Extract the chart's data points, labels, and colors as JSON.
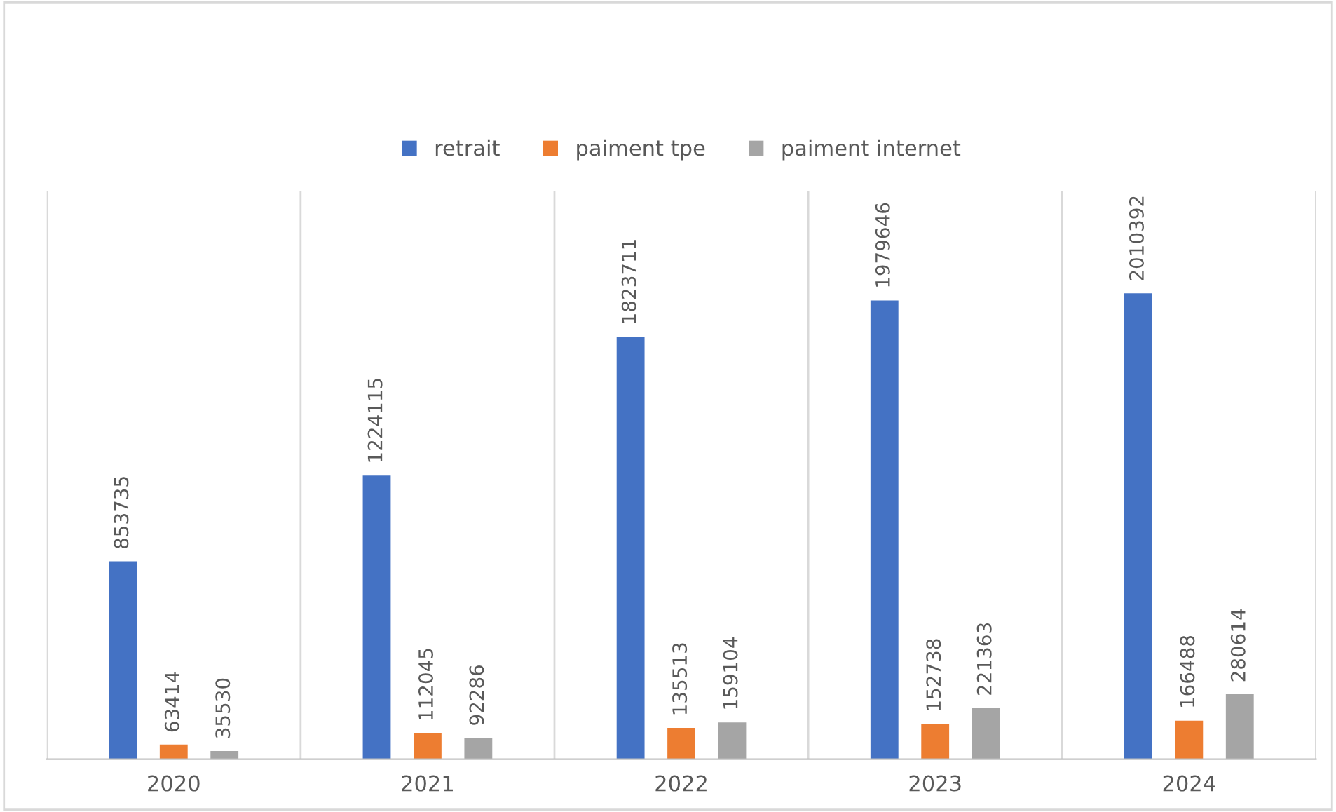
{
  "chart_data": {
    "type": "bar",
    "categories": [
      "2020",
      "2021",
      "2022",
      "2023",
      "2024"
    ],
    "series": [
      {
        "name": "retrait",
        "color": "#4472c4",
        "values": [
          853735,
          1224115,
          1823711,
          1979646,
          2010392
        ]
      },
      {
        "name": "paiment tpe",
        "color": "#ed7d31",
        "values": [
          63414,
          112045,
          135513,
          152738,
          166488
        ]
      },
      {
        "name": "paiment internet",
        "color": "#a5a5a5",
        "values": [
          35530,
          92286,
          159104,
          221363,
          280614
        ]
      }
    ],
    "data_labels": true,
    "grid": "x",
    "legend": "top"
  }
}
